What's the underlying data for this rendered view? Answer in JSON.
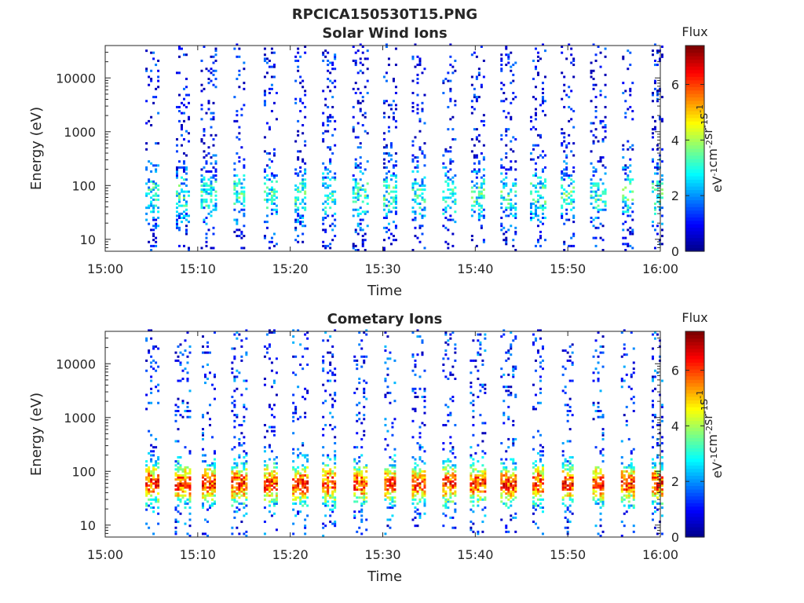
{
  "figure": {
    "title": "RPCICA150530T15.PNG"
  },
  "colors": {
    "colormap": [
      "#00008f",
      "#0000ff",
      "#0080ff",
      "#00ffff",
      "#80ff80",
      "#ffff00",
      "#ff8000",
      "#ff0000",
      "#800000"
    ]
  },
  "chart_data": [
    {
      "type": "heatmap",
      "title": "Solar Wind Ions",
      "xlabel": "Time",
      "ylabel": "Energy (eV)",
      "x_ticks": [
        "15:00",
        "15:10",
        "15:20",
        "15:30",
        "15:40",
        "15:50",
        "16:00"
      ],
      "x_range": [
        "15:00",
        "16:00"
      ],
      "y_scale": "log",
      "y_ticks": [
        "10",
        "100",
        "1000",
        "10000"
      ],
      "y_range": [
        6,
        40000
      ],
      "colorbar": {
        "title": "Flux",
        "unit": "eV-1cm-2sr-1s-1",
        "ticks": [
          "0",
          "2",
          "4",
          "6"
        ],
        "range": [
          0,
          7.4
        ]
      },
      "sweep_times_min": [
        5.1,
        8.4,
        11.2,
        14.5,
        17.9,
        21.1,
        24.2,
        27.6,
        30.8,
        33.9,
        37.2,
        40.3,
        43.6,
        46.8,
        50.0,
        53.3,
        56.5,
        59.7
      ],
      "intensity_profile": "mostly low flux (blue) spread 10 eV - 30 keV, with cyan/green near 20-300 eV",
      "grid": false
    },
    {
      "type": "heatmap",
      "title": "Cometary Ions",
      "xlabel": "Time",
      "ylabel": "Energy (eV)",
      "x_ticks": [
        "15:00",
        "15:10",
        "15:20",
        "15:30",
        "15:40",
        "15:50",
        "16:00"
      ],
      "x_range": [
        "15:00",
        "16:00"
      ],
      "y_scale": "log",
      "y_ticks": [
        "10",
        "100",
        "1000",
        "10000"
      ],
      "y_range": [
        6,
        40000
      ],
      "colorbar": {
        "title": "Flux",
        "unit": "eV-1cm-2sr-1s-1",
        "ticks": [
          "0",
          "2",
          "4",
          "6"
        ],
        "range": [
          0,
          7.4
        ]
      },
      "sweep_times_min": [
        5.1,
        8.4,
        11.2,
        14.5,
        17.9,
        21.1,
        24.2,
        27.6,
        30.8,
        33.9,
        37.2,
        40.3,
        43.6,
        46.8,
        50.0,
        53.3,
        56.5,
        59.7
      ],
      "intensity_profile": "high flux (yellow-orange-red) concentrated 15-300 eV, sparse blue above 1 keV",
      "grid": false
    }
  ]
}
